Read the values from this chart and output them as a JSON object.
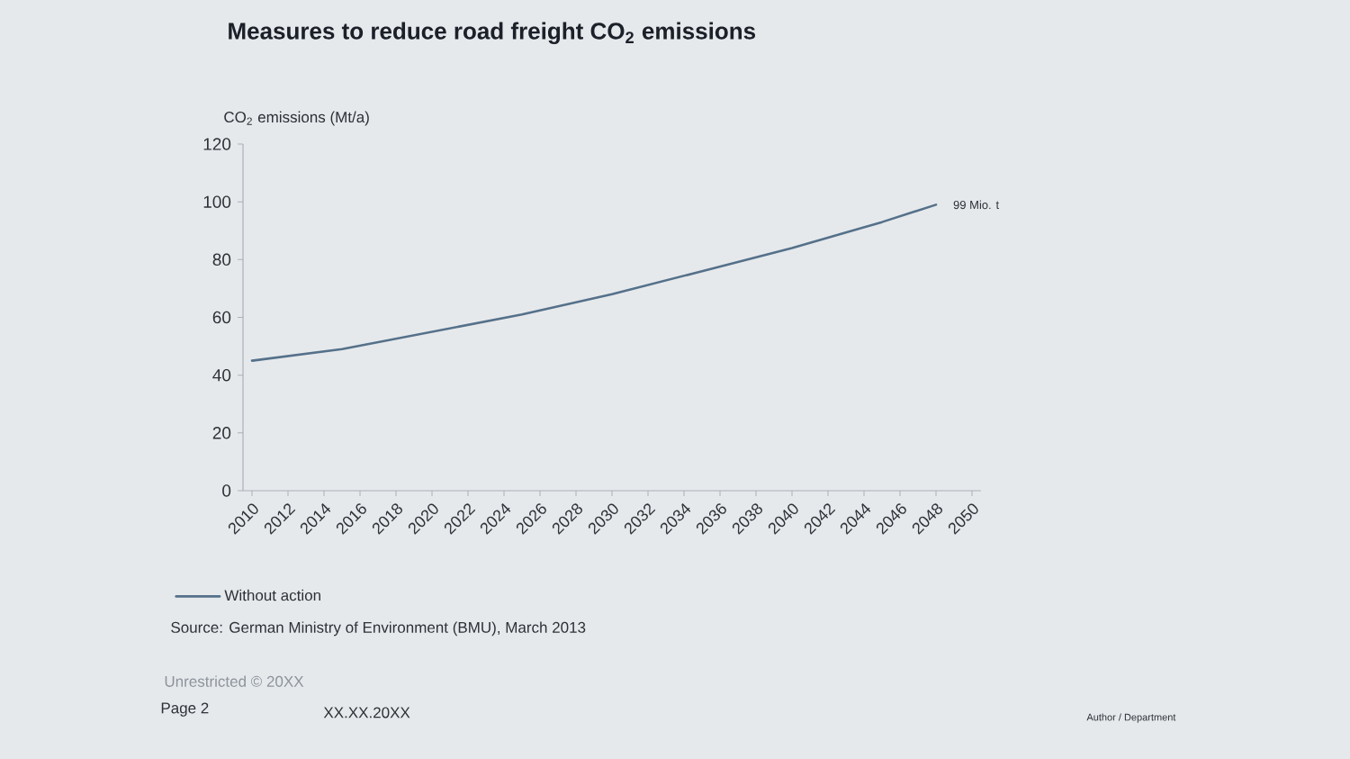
{
  "chart_data": {
    "type": "line",
    "title": "Measures to reduce road freight CO$_{2}$ emissions",
    "ylabel": "CO$_{2}$ emissions (Mt/a)",
    "x": [
      2010,
      2015,
      2020,
      2025,
      2030,
      2035,
      2040,
      2045,
      2048
    ],
    "series": [
      {
        "name": "Without action",
        "color": "#55718a",
        "values": [
          45,
          49,
          55,
          61,
          68,
          76,
          84,
          93,
          99
        ]
      }
    ],
    "xlim": [
      2009.5,
      2050.5
    ],
    "xticks": [
      2010,
      2012,
      2014,
      2016,
      2018,
      2020,
      2022,
      2024,
      2026,
      2028,
      2030,
      2032,
      2034,
      2036,
      2038,
      2040,
      2042,
      2044,
      2046,
      2048,
      2050
    ],
    "ylim": [
      0,
      120
    ],
    "yticks": [
      0,
      20,
      40,
      60,
      80,
      100,
      120
    ],
    "legend": "bottom",
    "line_style": "solid",
    "annotations": [
      {
        "text": "99 Mio. t",
        "x": 2048,
        "y": 99
      },
      "Source: German Ministry of Environment (BMU), March 2013",
      "Unrestricted © 20XX",
      "Page 2",
      "XX.XX.20XX",
      "Author / Department"
    ]
  }
}
